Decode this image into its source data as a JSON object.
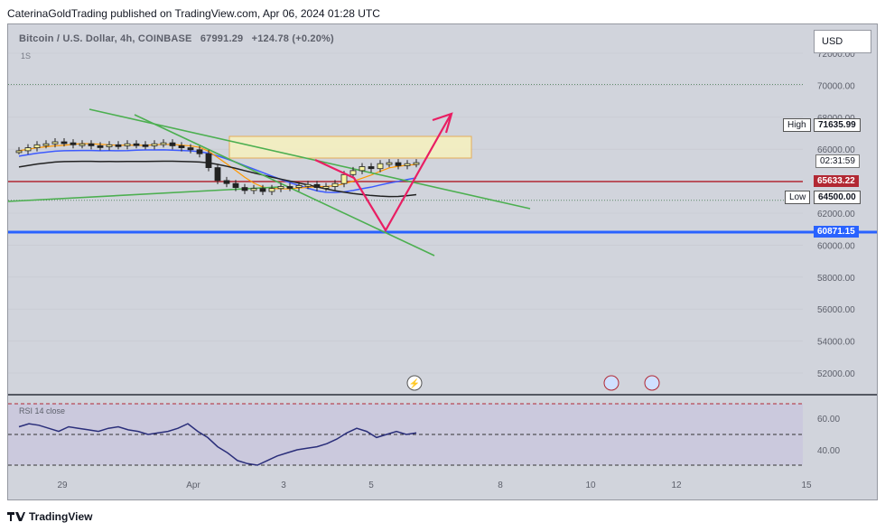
{
  "publisher": "CaterinaGoldTrading published on TradingView.com, Apr 06, 2024 01:28 UTC",
  "symbol": {
    "name": "Bitcoin / U.S. Dollar, 4h, COINBASE",
    "price": "67991.29",
    "change": "+124.78 (+0.20%)",
    "interval_hint": "1S"
  },
  "currency_button": "USD",
  "price_scale": {
    "ticks": [
      "72000.00",
      "70000.00",
      "68000.00",
      "66000.00",
      "64000.00",
      "62000.00",
      "60000.00",
      "58000.00",
      "56000.00",
      "54000.00",
      "52000.00"
    ]
  },
  "labels": {
    "high_label": "High",
    "high_value": "71635.99",
    "low_label": "Low",
    "low_value": "64500.00",
    "countdown": "02:31:59",
    "current_price": "65633.22",
    "support_price": "60871.15"
  },
  "time_axis": [
    "29",
    "Apr",
    "3",
    "5",
    "8",
    "10",
    "12",
    "15"
  ],
  "rsi": {
    "title": "RSI 14 close",
    "value": "41.07",
    "levels": [
      "60.00",
      "40.00"
    ]
  },
  "footer": "TradingView",
  "colors": {
    "background": "#d1d4dc",
    "support_line": "#2962ff",
    "trendline": "#4caf50",
    "arrow": "#e91e63",
    "zone_fill": "#f5f0c0",
    "current_price_tag": "#b22833"
  },
  "chart_data": {
    "type": "candlestick",
    "series": [
      {
        "name": "Bitcoin / U.S. Dollar",
        "close": [
          69200,
          69500,
          69800,
          69900,
          70100,
          70000,
          69800,
          69900,
          69700,
          69600,
          69800,
          69700,
          69900,
          69800,
          69700,
          69900,
          70000,
          69700,
          69500,
          69300,
          68900,
          67500,
          66200,
          65900,
          65500,
          65200,
          65400,
          65100,
          65400,
          65600,
          65500,
          65700,
          65800,
          65500,
          65600,
          65900,
          66800,
          67200,
          67600,
          67400,
          67900,
          68000,
          67700,
          67900,
          68000
        ]
      },
      {
        "name": "RSI",
        "values": [
          55,
          57,
          56,
          54,
          52,
          55,
          54,
          53,
          52,
          54,
          55,
          53,
          52,
          50,
          51,
          52,
          54,
          57,
          52,
          48,
          42,
          38,
          33,
          31,
          30,
          33,
          36,
          38,
          40,
          41,
          42,
          44,
          47,
          51,
          54,
          52,
          48,
          50,
          52,
          50,
          51
        ]
      }
    ],
    "support": 60871.15,
    "resistance_zone": [
      68000,
      70000
    ],
    "high": 71635.99,
    "low": 64500.0,
    "current": 65633.22
  }
}
